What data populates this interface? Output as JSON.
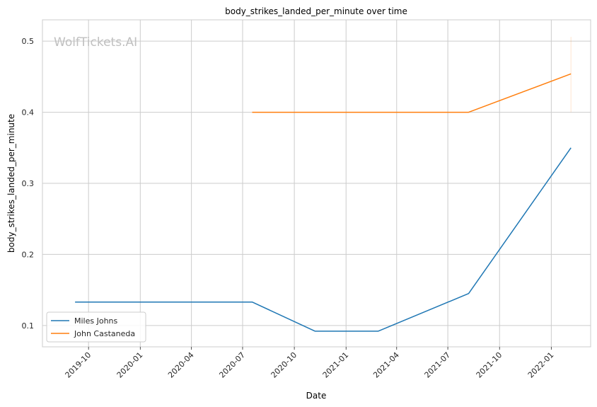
{
  "chart_data": {
    "type": "line",
    "title": "body_strikes_landed_per_minute over time",
    "xlabel": "Date",
    "ylabel": "body_strikes_landed_per_minute",
    "watermark": "WolfTickets.AI",
    "xlim": [
      "2019-07-11",
      "2022-03-12"
    ],
    "ylim": [
      0.07,
      0.53
    ],
    "x_ticks": [
      "2019-10",
      "2020-01",
      "2020-04",
      "2020-07",
      "2020-10",
      "2021-01",
      "2021-04",
      "2021-07",
      "2021-10",
      "2022-01"
    ],
    "y_ticks": [
      0.1,
      0.2,
      0.3,
      0.4,
      0.5
    ],
    "grid": true,
    "legend_position": "lower-left",
    "series": [
      {
        "name": "Miles Johns",
        "color": "#1f77b4",
        "points": [
          {
            "x": "2019-09-07",
            "y": 0.133
          },
          {
            "x": "2020-07-18",
            "y": 0.133
          },
          {
            "x": "2020-11-07",
            "y": 0.092
          },
          {
            "x": "2021-02-27",
            "y": 0.092
          },
          {
            "x": "2021-08-07",
            "y": 0.145
          },
          {
            "x": "2022-02-05",
            "y": 0.35
          }
        ]
      },
      {
        "name": "John Castaneda",
        "color": "#ff7f0e",
        "points": [
          {
            "x": "2020-07-18",
            "y": 0.4
          },
          {
            "x": "2021-08-07",
            "y": 0.4
          },
          {
            "x": "2022-02-05",
            "y": 0.454
          }
        ]
      }
    ]
  }
}
